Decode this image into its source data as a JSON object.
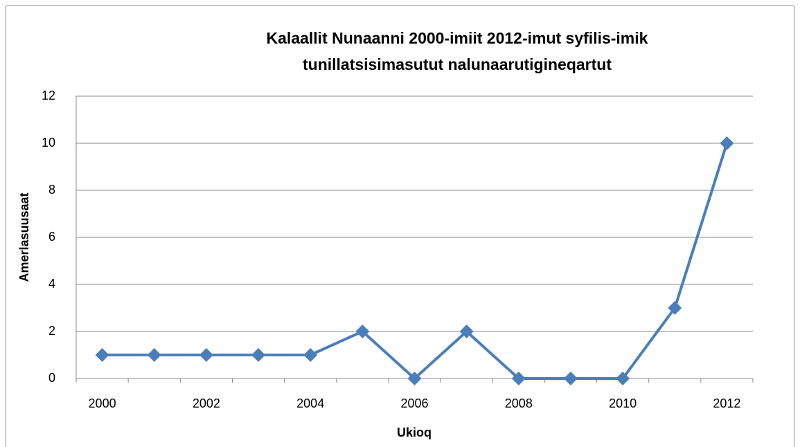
{
  "chart_data": {
    "type": "line",
    "title": [
      "Kalaallit Nunaanni  2000-imiit 2012-imut syfilis-imik",
      "tunillatsisimasutut nalunaarutigineqartut"
    ],
    "x_label": "Ukioq",
    "y_label": "Amerlasuusaat",
    "categories": [
      "2000",
      null,
      "2002",
      null,
      "2004",
      null,
      "2006",
      null,
      "2008",
      null,
      "2010",
      null,
      "2012"
    ],
    "series": [
      {
        "name": "Amerlasuusaat",
        "color": "#4a7ebb",
        "values": [
          1,
          1,
          1,
          1,
          1,
          2,
          0,
          2,
          0,
          0,
          0,
          3,
          10
        ]
      }
    ],
    "ylim": [
      0,
      12
    ],
    "yticks": [
      0,
      2,
      4,
      6,
      8,
      10,
      12
    ],
    "grid": true,
    "legend": false
  }
}
